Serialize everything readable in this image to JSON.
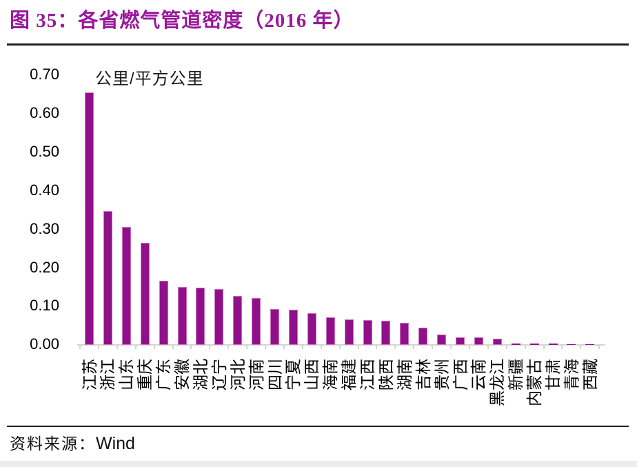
{
  "figure": {
    "title": "图 35：各省燃气管道密度（2016 年）",
    "source_label": "资料来源：",
    "source_name": "Wind"
  },
  "chart_data": {
    "type": "bar",
    "title": "图 35：各省燃气管道密度（2016 年）",
    "unit_label": "公里/平方公里",
    "xlabel": "",
    "ylabel": "公里/平方公里",
    "ylim": [
      0,
      0.7
    ],
    "ytick_step": 0.1,
    "ytick_labels": [
      "0.70",
      "0.60",
      "0.50",
      "0.40",
      "0.30",
      "0.20",
      "0.10",
      "0.00"
    ],
    "grid": false,
    "legend": false,
    "x_label_rotation_deg": -90,
    "bar_color": "#90108A",
    "bar_border_color": "#CB72C2",
    "axis_color": "#D7D4D4",
    "categories": [
      "江苏",
      "浙江",
      "山东",
      "重庆",
      "广东",
      "安徽",
      "湖北",
      "辽宁",
      "河北",
      "河南",
      "四川",
      "宁夏",
      "山西",
      "海南",
      "福建",
      "江西",
      "陕西",
      "湖南",
      "吉林",
      "贵州",
      "广西",
      "云南",
      "黑龙江",
      "新疆",
      "内蒙古",
      "甘肃",
      "青海",
      "西藏"
    ],
    "values": [
      0.655,
      0.348,
      0.306,
      0.265,
      0.167,
      0.151,
      0.148,
      0.145,
      0.127,
      0.122,
      0.093,
      0.092,
      0.082,
      0.071,
      0.067,
      0.065,
      0.063,
      0.058,
      0.044,
      0.026,
      0.02,
      0.02,
      0.016,
      0.004,
      0.003,
      0.003,
      0.001,
      0.001
    ]
  }
}
